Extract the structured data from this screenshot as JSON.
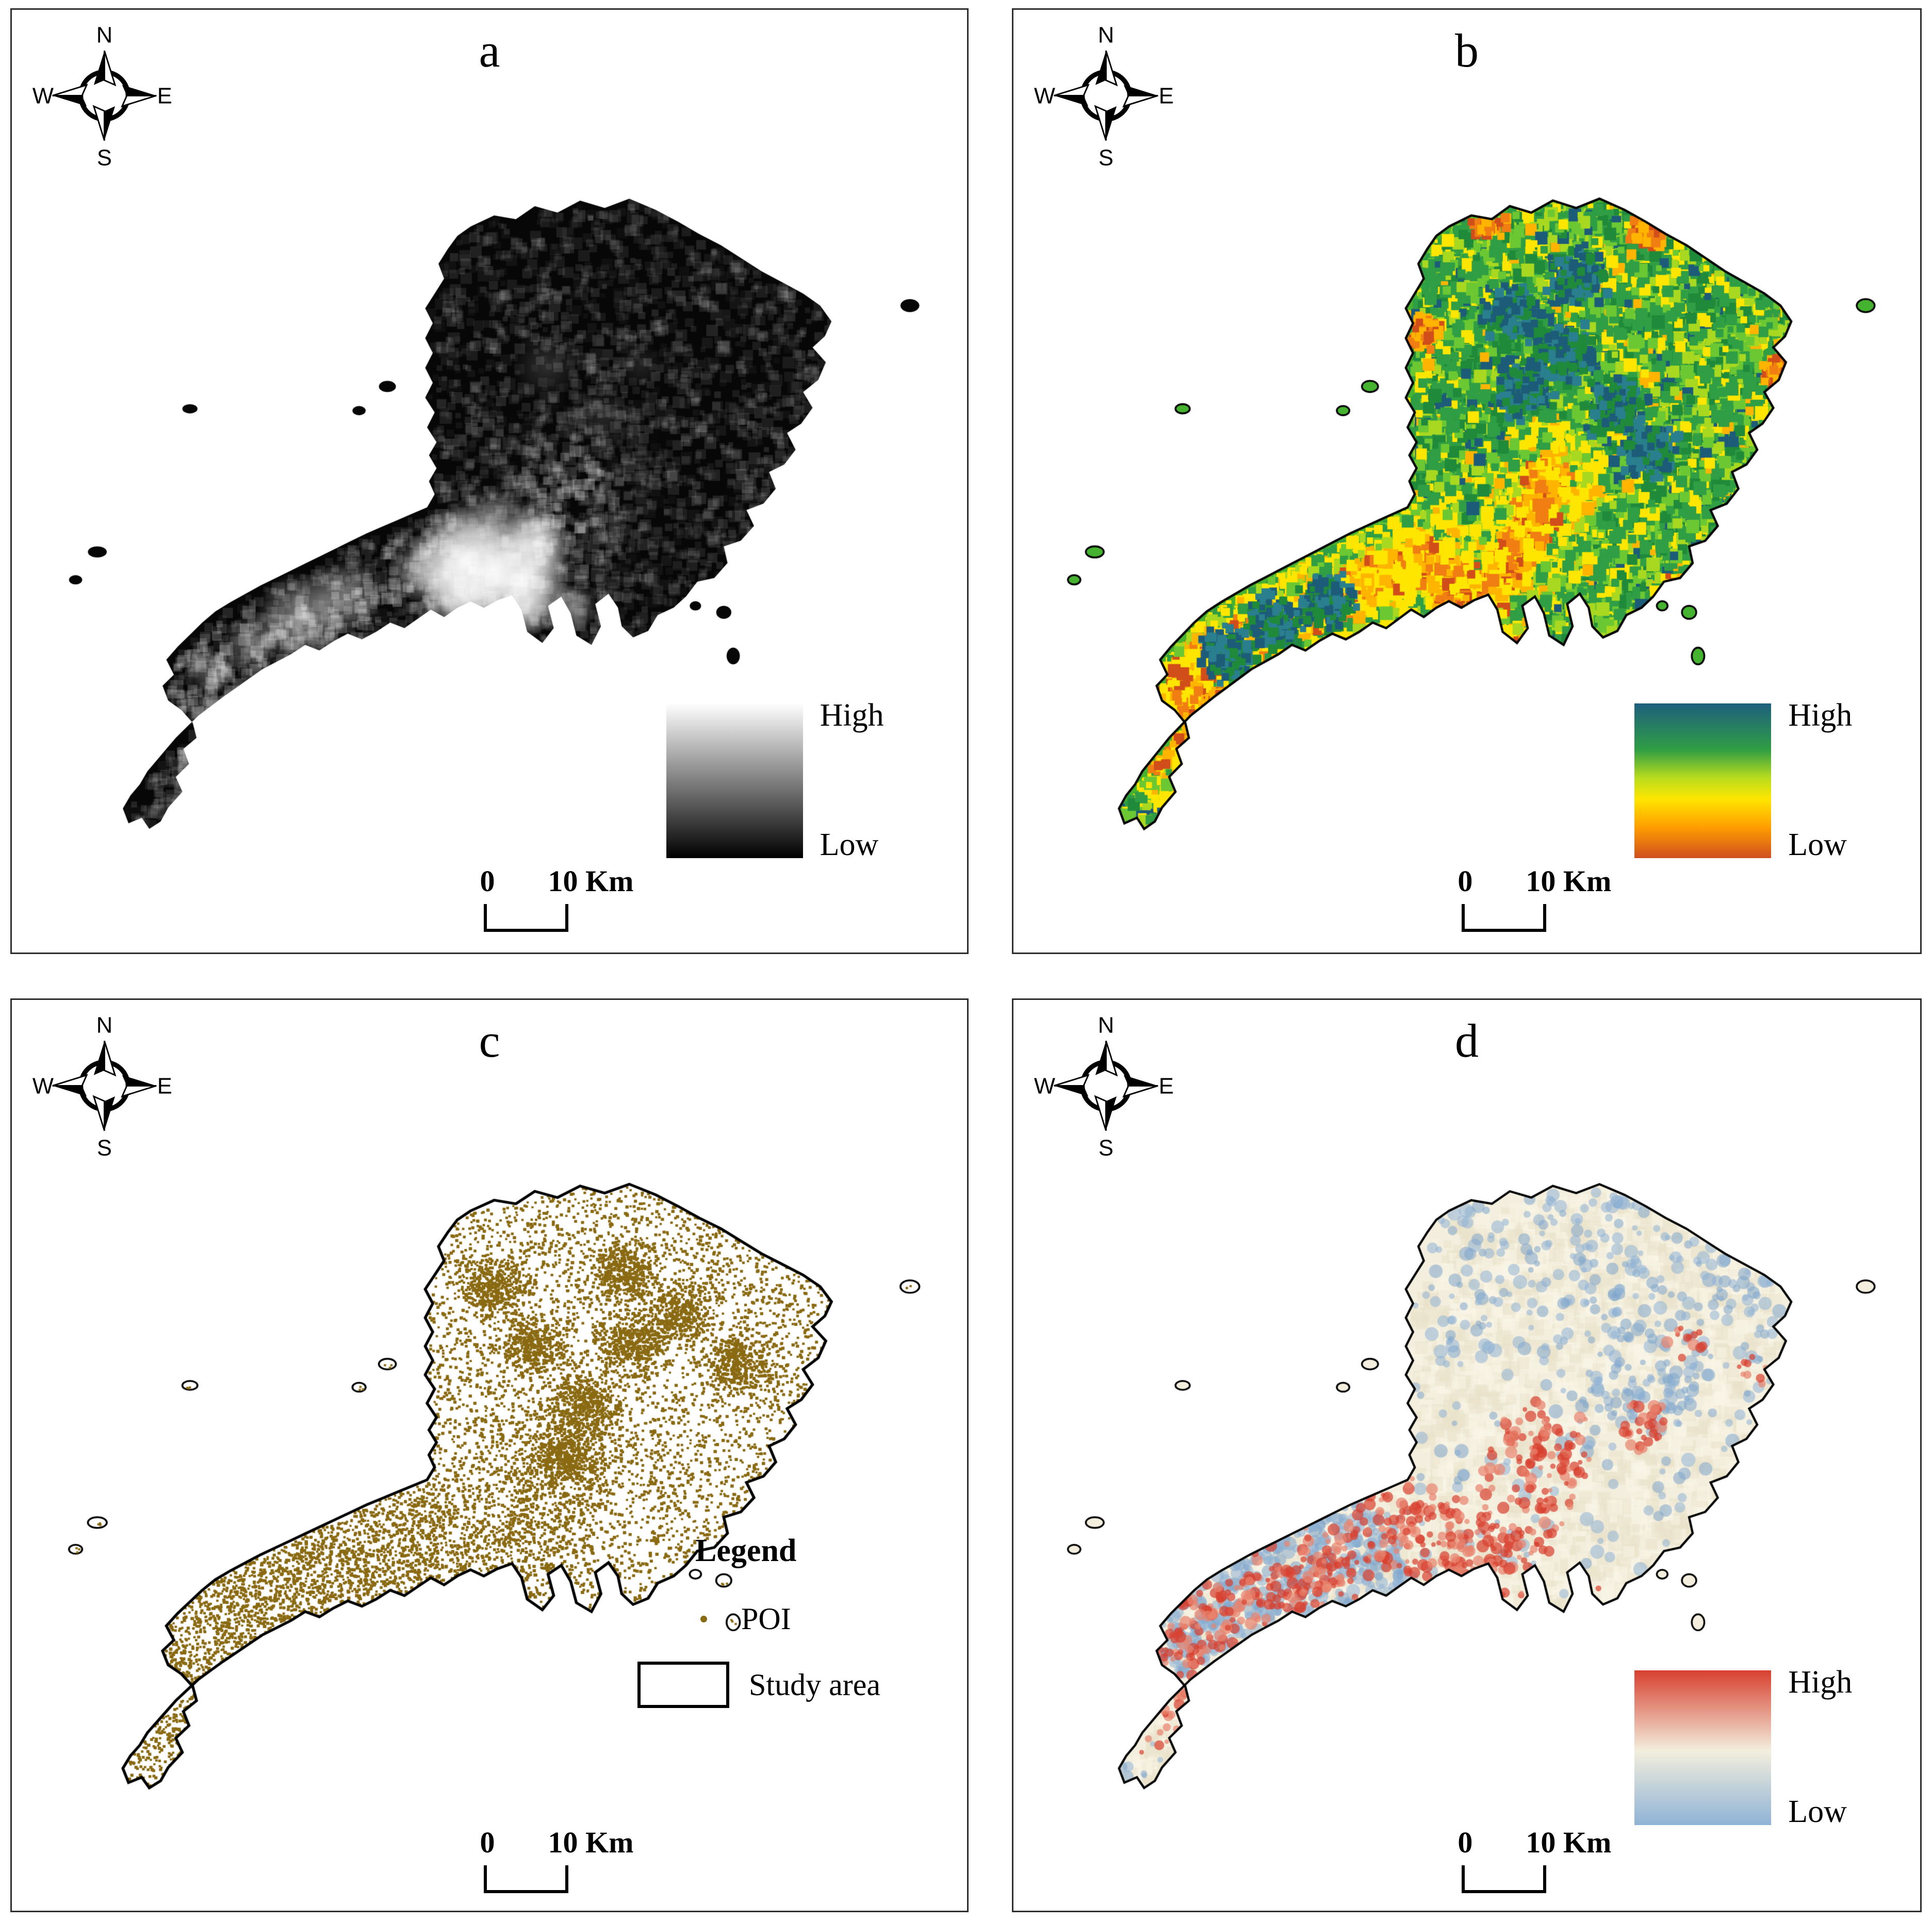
{
  "figure": {
    "compass": {
      "n": "N",
      "e": "E",
      "s": "S",
      "w": "W"
    },
    "scalebar": {
      "left": "0",
      "right": "10 Km"
    },
    "panels": [
      {
        "label": "a",
        "type": "grayscale",
        "legend": {
          "high": "High",
          "low": "Low",
          "gradient": [
            "#ffffff",
            "#000000"
          ]
        },
        "map_colors": {
          "land": "#070707",
          "lights": "#ffffff"
        }
      },
      {
        "label": "b",
        "type": "spectral",
        "legend": {
          "high": "High",
          "low": "Low",
          "gradient": [
            "#1e5f7e",
            "#2f9e44",
            "#b8dc1e",
            "#ffe600",
            "#ff9e00",
            "#cf4f1f"
          ]
        },
        "map_colors": {
          "base": "#45b32f",
          "teal": "#1d5c78",
          "teal2": "#2a7f8f",
          "green_dark": "#1f8a3a",
          "green_light": "#6cc832",
          "lime": "#a8d820",
          "yellow": "#ffe600",
          "orange": "#ffb400",
          "orange2": "#f07e12",
          "red_orange": "#d14e1a"
        }
      },
      {
        "label": "c",
        "type": "poi",
        "legend": {
          "title": "Legend",
          "items": [
            {
              "label": "POI",
              "symbol": "dot",
              "color": "#8a6a12"
            },
            {
              "label": "Study area",
              "symbol": "rect",
              "color": "#ffffff"
            }
          ]
        },
        "map_colors": {
          "poi": "#8a6a12",
          "outline": "#000000",
          "fill": "#ffffff"
        }
      },
      {
        "label": "d",
        "type": "diverging",
        "legend": {
          "high": "High",
          "low": "Low",
          "gradient": [
            "#d8402f",
            "#f3eedd",
            "#8fb3d6"
          ]
        },
        "map_colors": {
          "base": "#f3eedd",
          "high": "#d8402f",
          "high_soft": "#e8836d",
          "low": "#8fb3d6",
          "low_deep": "#7fa6cc",
          "mottle1": "#e9e2ca",
          "mottle2": "#faf6e8"
        }
      }
    ]
  }
}
